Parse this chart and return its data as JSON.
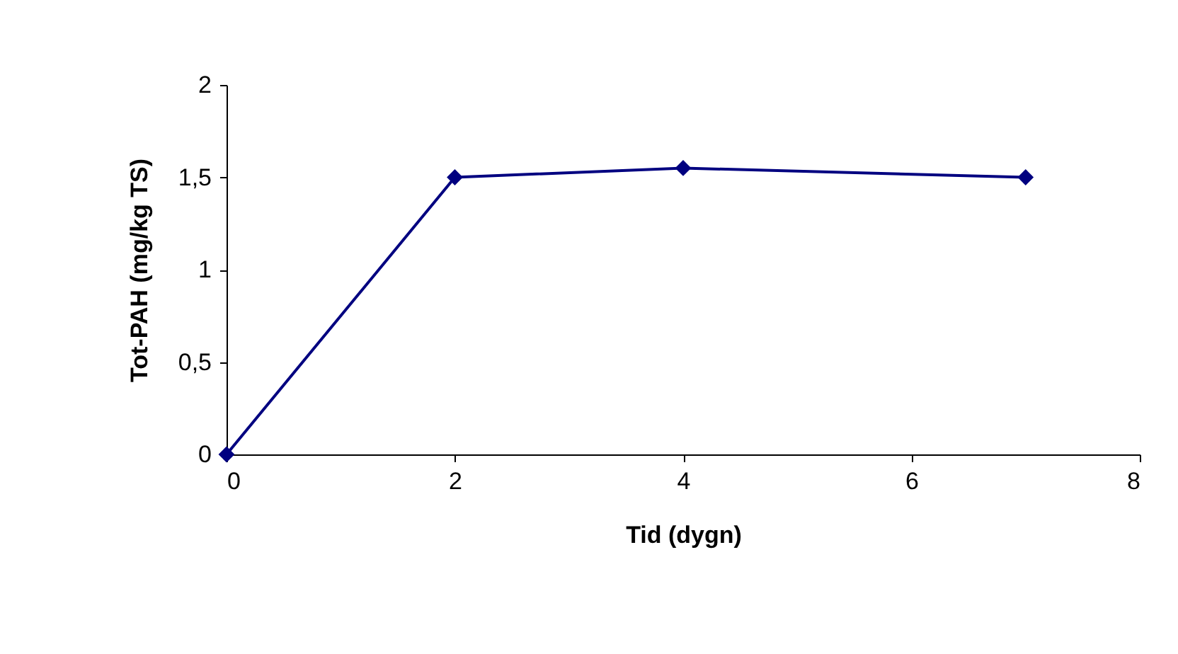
{
  "chart_data": {
    "type": "line",
    "xlabel": "Tid (dygn)",
    "ylabel": "Tot-PAH (mg/kg TS)",
    "x": [
      0,
      2,
      4,
      7
    ],
    "series": [
      {
        "color": "#000080",
        "values": [
          0,
          1.5,
          1.55,
          1.5
        ]
      }
    ],
    "xlim": [
      0,
      8
    ],
    "xticks": [
      0,
      2,
      4,
      6,
      8
    ],
    "ylim": [
      0,
      2
    ],
    "yticks": [
      0,
      {
        "value": 0.5,
        "label": "0,5"
      },
      1,
      {
        "value": 1.5,
        "label": "1,5"
      },
      2
    ],
    "marker": "diamond",
    "line_style": "solid",
    "grid": false,
    "legend": false
  }
}
